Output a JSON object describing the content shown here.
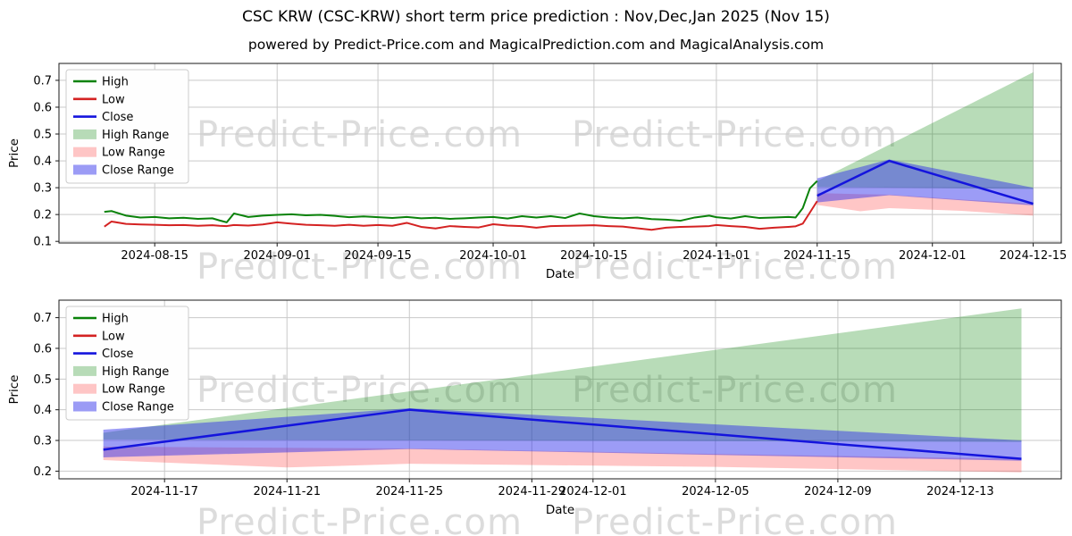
{
  "page": {
    "title": "CSC KRW (CSC-KRW) short term price prediction : Nov,Dec,Jan 2025 (Nov 15)",
    "subtitle": "powered by Predict-Price.com and MagicalPrediction.com and MagicalAnalysis.com",
    "watermark": "Predict-Price.com"
  },
  "colors": {
    "high_line": "#0a820a",
    "low_line": "#d42222",
    "close_line": "#1414dd",
    "high_range_fill": "rgba(0,128,0,0.28)",
    "low_range_fill": "rgba(255,45,45,0.27)",
    "close_range_fill": "rgba(45,45,235,0.47)",
    "grid": "#c9c9c9",
    "spine": "#1a1a1a",
    "legend_bg": "#fefefe",
    "legend_border": "#cccccc",
    "text": "#000000"
  },
  "legend": {
    "items": [
      {
        "label": "High",
        "type": "line",
        "color_key": "high_line"
      },
      {
        "label": "Low",
        "type": "line",
        "color_key": "low_line"
      },
      {
        "label": "Close",
        "type": "line",
        "color_key": "close_line"
      },
      {
        "label": "High Range",
        "type": "patch",
        "color_key": "high_range_fill"
      },
      {
        "label": "Low Range",
        "type": "patch",
        "color_key": "low_range_fill"
      },
      {
        "label": "Close Range",
        "type": "patch",
        "color_key": "close_range_fill"
      }
    ]
  },
  "chart_data": [
    {
      "name": "history-and-prediction",
      "type": "line",
      "xlabel": "Date",
      "ylabel": "Price",
      "x_unit": "days since 2024-08-08",
      "xlim": [
        -6.3,
        132.9
      ],
      "ylim": [
        0.094,
        0.763
      ],
      "grid": true,
      "legend_position": "upper left",
      "yticks": [
        {
          "v": 0.1,
          "label": "0.1"
        },
        {
          "v": 0.2,
          "label": "0.2"
        },
        {
          "v": 0.3,
          "label": "0.3"
        },
        {
          "v": 0.4,
          "label": "0.4"
        },
        {
          "v": 0.5,
          "label": "0.5"
        },
        {
          "v": 0.6,
          "label": "0.6"
        },
        {
          "v": 0.7,
          "label": "0.7"
        }
      ],
      "xticks": [
        {
          "v": 7,
          "label": "2024-08-15"
        },
        {
          "v": 24,
          "label": "2024-09-01"
        },
        {
          "v": 38,
          "label": "2024-09-15"
        },
        {
          "v": 54,
          "label": "2024-10-01"
        },
        {
          "v": 68,
          "label": "2024-10-15"
        },
        {
          "v": 85,
          "label": "2024-11-01"
        },
        {
          "v": 99,
          "label": "2024-11-15"
        },
        {
          "v": 115,
          "label": "2024-12-01"
        },
        {
          "v": 129,
          "label": "2024-12-15"
        }
      ],
      "series": {
        "high": {
          "x": [
            0,
            1,
            3,
            5,
            7,
            9,
            11,
            13,
            15,
            16,
            17,
            18,
            20,
            22,
            24,
            26,
            28,
            30,
            32,
            34,
            36,
            38,
            40,
            42,
            44,
            46,
            48,
            50,
            52,
            54,
            56,
            58,
            60,
            62,
            64,
            66,
            68,
            70,
            72,
            74,
            76,
            78,
            80,
            82,
            84,
            85,
            87,
            89,
            91,
            93,
            95,
            96,
            97,
            98,
            99
          ],
          "y": [
            0.21,
            0.213,
            0.196,
            0.189,
            0.191,
            0.186,
            0.188,
            0.184,
            0.186,
            0.178,
            0.171,
            0.204,
            0.191,
            0.196,
            0.199,
            0.201,
            0.197,
            0.199,
            0.195,
            0.19,
            0.193,
            0.19,
            0.187,
            0.191,
            0.186,
            0.188,
            0.184,
            0.186,
            0.189,
            0.191,
            0.185,
            0.194,
            0.189,
            0.194,
            0.187,
            0.204,
            0.194,
            0.189,
            0.186,
            0.189,
            0.183,
            0.181,
            0.177,
            0.189,
            0.196,
            0.19,
            0.185,
            0.194,
            0.187,
            0.189,
            0.191,
            0.189,
            0.224,
            0.298,
            0.325
          ]
        },
        "low": {
          "x": [
            0,
            1,
            3,
            5,
            7,
            9,
            11,
            13,
            15,
            16,
            17,
            18,
            20,
            22,
            24,
            26,
            28,
            30,
            32,
            34,
            36,
            38,
            40,
            42,
            44,
            46,
            48,
            50,
            52,
            54,
            56,
            58,
            60,
            62,
            64,
            66,
            68,
            70,
            72,
            74,
            76,
            78,
            80,
            82,
            84,
            85,
            87,
            89,
            91,
            93,
            95,
            96,
            97,
            98,
            99
          ],
          "y": [
            0.155,
            0.174,
            0.165,
            0.163,
            0.162,
            0.16,
            0.161,
            0.158,
            0.16,
            0.158,
            0.157,
            0.161,
            0.159,
            0.163,
            0.171,
            0.166,
            0.162,
            0.16,
            0.158,
            0.162,
            0.158,
            0.161,
            0.158,
            0.169,
            0.154,
            0.148,
            0.157,
            0.154,
            0.152,
            0.164,
            0.159,
            0.157,
            0.151,
            0.157,
            0.158,
            0.159,
            0.16,
            0.157,
            0.155,
            0.149,
            0.143,
            0.151,
            0.154,
            0.155,
            0.157,
            0.161,
            0.157,
            0.154,
            0.147,
            0.151,
            0.154,
            0.156,
            0.166,
            0.208,
            0.25
          ]
        },
        "close": {
          "x": [
            99,
            109,
            129
          ],
          "y": [
            0.27,
            0.4,
            0.24
          ]
        },
        "high_range": {
          "x": [
            99,
            129
          ],
          "upper": [
            0.325,
            0.73
          ],
          "lower": [
            0.303,
            0.295
          ]
        },
        "low_range": {
          "x": [
            99,
            105,
            109,
            119,
            129
          ],
          "upper": [
            0.28,
            0.276,
            0.274,
            0.256,
            0.24
          ],
          "lower": [
            0.236,
            0.212,
            0.224,
            0.214,
            0.196
          ]
        },
        "close_range": {
          "x": [
            99,
            109,
            129
          ],
          "upper": [
            0.335,
            0.405,
            0.3
          ],
          "lower": [
            0.245,
            0.272,
            0.234
          ]
        }
      }
    },
    {
      "name": "prediction-zoom",
      "type": "line",
      "xlabel": "Date",
      "ylabel": "Price",
      "x_unit": "days since 2024-08-08",
      "xlim": [
        97.55,
        130.3
      ],
      "ylim": [
        0.175,
        0.757
      ],
      "grid": true,
      "legend_position": "upper left",
      "yticks": [
        {
          "v": 0.2,
          "label": "0.2"
        },
        {
          "v": 0.3,
          "label": "0.3"
        },
        {
          "v": 0.4,
          "label": "0.4"
        },
        {
          "v": 0.5,
          "label": "0.5"
        },
        {
          "v": 0.6,
          "label": "0.6"
        },
        {
          "v": 0.7,
          "label": "0.7"
        }
      ],
      "xticks": [
        {
          "v": 101,
          "label": "2024-11-17"
        },
        {
          "v": 105,
          "label": "2024-11-21"
        },
        {
          "v": 109,
          "label": "2024-11-25"
        },
        {
          "v": 113,
          "label": "2024-11-29"
        },
        {
          "v": 115,
          "label": "2024-12-01"
        },
        {
          "v": 119,
          "label": "2024-12-05"
        },
        {
          "v": 123,
          "label": "2024-12-09"
        },
        {
          "v": 127,
          "label": "2024-12-13"
        }
      ],
      "series": {
        "close": {
          "x": [
            99,
            109,
            129
          ],
          "y": [
            0.27,
            0.4,
            0.24
          ]
        },
        "high_range": {
          "x": [
            99,
            129
          ],
          "upper": [
            0.325,
            0.73
          ],
          "lower": [
            0.303,
            0.295
          ]
        },
        "low_range": {
          "x": [
            99,
            105,
            109,
            119,
            129
          ],
          "upper": [
            0.28,
            0.276,
            0.274,
            0.256,
            0.24
          ],
          "lower": [
            0.236,
            0.212,
            0.224,
            0.214,
            0.196
          ]
        },
        "close_range": {
          "x": [
            99,
            109,
            129
          ],
          "upper": [
            0.335,
            0.405,
            0.3
          ],
          "lower": [
            0.245,
            0.272,
            0.234
          ]
        }
      }
    }
  ]
}
